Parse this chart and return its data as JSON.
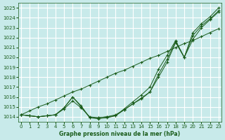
{
  "title": "Graphe pression niveau de la mer (hPa)",
  "bg_color": "#c8eaea",
  "grid_color": "#ffffff",
  "line_color": "#1a5c1a",
  "xlim": [
    -0.3,
    23.3
  ],
  "ylim": [
    1013.5,
    1025.5
  ],
  "yticks": [
    1014,
    1015,
    1016,
    1017,
    1018,
    1019,
    1020,
    1021,
    1022,
    1023,
    1024,
    1025
  ],
  "xticks": [
    0,
    1,
    2,
    3,
    4,
    5,
    6,
    7,
    8,
    9,
    10,
    11,
    12,
    13,
    14,
    15,
    16,
    17,
    18,
    19,
    20,
    21,
    22,
    23
  ],
  "series": [
    [
      1014.2,
      1014.1,
      1014.0,
      1014.1,
      1014.2,
      1014.8,
      1015.6,
      1014.9,
      1014.0,
      1013.9,
      1014.0,
      1014.2,
      1014.7,
      1015.3,
      1015.8,
      1016.5,
      1018.0,
      1019.5,
      1021.5,
      1020.0,
      1021.8,
      1023.0,
      1023.8,
      1024.6
    ],
    [
      1014.2,
      1014.1,
      1014.0,
      1014.1,
      1014.2,
      1014.9,
      1016.0,
      1015.1,
      1013.9,
      1013.8,
      1013.9,
      1014.1,
      1014.7,
      1015.3,
      1015.9,
      1016.5,
      1018.3,
      1019.8,
      1021.6,
      1020.0,
      1022.2,
      1023.2,
      1023.9,
      1024.7
    ],
    [
      1014.2,
      1014.1,
      1014.0,
      1014.1,
      1014.2,
      1014.9,
      1016.0,
      1015.0,
      1013.9,
      1013.9,
      1014.0,
      1014.1,
      1014.8,
      1015.5,
      1016.2,
      1017.0,
      1018.8,
      1020.2,
      1021.7,
      1020.0,
      1022.5,
      1023.4,
      1024.1,
      1025.0
    ]
  ],
  "series_straight": [
    [
      1014.2,
      1014.6,
      1015.0,
      1015.3,
      1015.7,
      1016.1,
      1016.5,
      1016.8,
      1017.2,
      1017.6,
      1018.0,
      1018.4,
      1018.7,
      1019.1,
      1019.5,
      1019.9,
      1020.2,
      1020.6,
      1021.0,
      1021.4,
      1021.7,
      1022.1,
      1022.5,
      1022.9
    ]
  ]
}
